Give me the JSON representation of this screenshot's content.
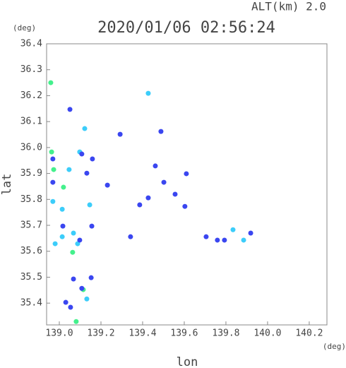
{
  "chart_data": {
    "type": "scatter",
    "title": "2020/01/06 02:56:24",
    "subtitle": "ALT(km)  2.0",
    "x_label": "lon",
    "y_label": "lat",
    "x_unit": "(deg)",
    "y_unit": "(deg)",
    "xlim": [
      138.939,
      140.285
    ],
    "ylim": [
      35.316,
      36.4
    ],
    "xticks": [
      {
        "value": 139.0,
        "label": "139.0"
      },
      139.2,
      139.4,
      139.6,
      139.8,
      {
        "value": 140.0,
        "label": "140.0"
      },
      140.2
    ],
    "yticks": [
      35.4,
      35.5,
      35.6,
      35.7,
      35.8,
      35.9,
      {
        "value": 36.0,
        "label": "36.0"
      },
      36.1,
      36.2,
      36.3,
      36.4
    ],
    "series": [
      {
        "color": "#44f08c",
        "x": [
          138.959,
          138.963,
          139.02,
          139.115,
          139.081,
          139.064,
          138.973
        ],
        "y": [
          36.25,
          35.983,
          35.847,
          35.452,
          35.329,
          35.596,
          35.915
        ]
      },
      {
        "color": "#3ccdfa",
        "x": [
          139.427,
          139.122,
          139.047,
          138.969,
          139.014,
          139.014,
          139.068,
          139.088,
          139.132,
          139.146,
          139.885,
          139.834,
          139.098,
          138.98
        ],
        "y": [
          36.209,
          36.073,
          35.915,
          35.792,
          35.762,
          35.656,
          35.67,
          35.629,
          35.416,
          35.779,
          35.643,
          35.683,
          35.983,
          35.629
        ]
      },
      {
        "color": "#3a46f0",
        "x": [
          139.051,
          139.031,
          139.054,
          139.153,
          139.108,
          139.919,
          139.793,
          139.705,
          138.969,
          139.108,
          139.132,
          139.342,
          139.603,
          139.017,
          139.068,
          139.386,
          139.231,
          139.502,
          139.427,
          139.556,
          139.61,
          139.159,
          139.759,
          139.461,
          139.292,
          139.488,
          139.098,
          139.156,
          138.969
        ],
        "y": [
          36.147,
          35.403,
          35.384,
          35.498,
          35.457,
          35.67,
          35.643,
          35.656,
          35.956,
          35.975,
          35.901,
          35.656,
          35.773,
          35.697,
          35.493,
          35.779,
          35.855,
          35.866,
          35.806,
          35.82,
          35.899,
          35.956,
          35.643,
          35.929,
          36.051,
          36.062,
          35.643,
          35.697,
          35.866
        ]
      }
    ]
  }
}
